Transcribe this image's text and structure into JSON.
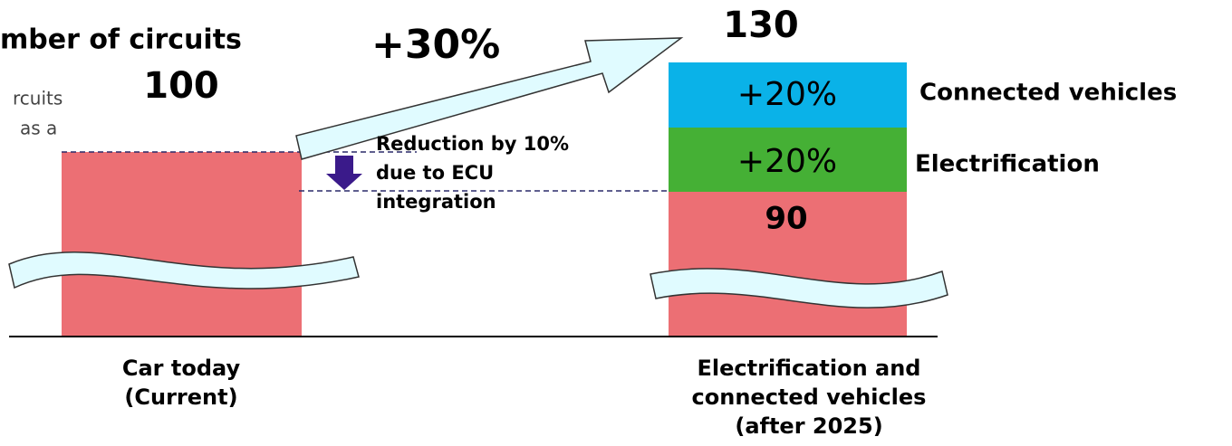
{
  "title": "mber of circuits",
  "note": [
    "rcuits",
    "as a"
  ],
  "growth": "+30%",
  "bars": [
    {
      "total": "100",
      "label": [
        "Car today",
        "(Current)"
      ]
    },
    {
      "total": "130",
      "base": "90",
      "label": [
        "Electrification and",
        "connected vehicles",
        "(after 2025)"
      ],
      "segments": [
        {
          "value": "+20%",
          "name": "Electrification"
        },
        {
          "value": "+20%",
          "name": "Connected vehicles"
        }
      ]
    }
  ],
  "reduction": [
    "Reduction by 10%",
    "due to ECU",
    "integration"
  ]
}
